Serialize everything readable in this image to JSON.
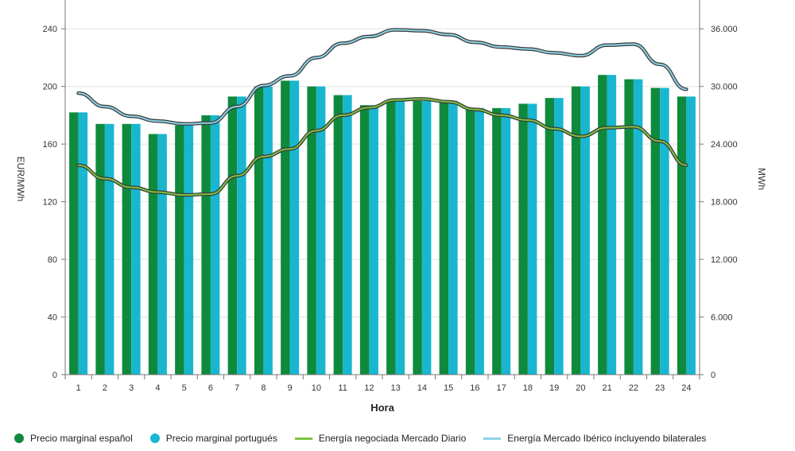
{
  "chart_data": {
    "type": "bar",
    "title": "",
    "xlabel": "Hora",
    "ylabel_left": "EUR/MWh",
    "ylabel_right": "MWh",
    "categories": [
      "1",
      "2",
      "3",
      "4",
      "5",
      "6",
      "7",
      "8",
      "9",
      "10",
      "11",
      "12",
      "13",
      "14",
      "15",
      "16",
      "17",
      "18",
      "19",
      "20",
      "21",
      "22",
      "23",
      "24"
    ],
    "ylim_left": [
      0,
      260
    ],
    "ylim_right": [
      0,
      39000
    ],
    "yticks_left": [
      0,
      40,
      80,
      120,
      160,
      200,
      240
    ],
    "yticks_left_labels": [
      "0",
      "40",
      "80",
      "120",
      "160",
      "200",
      "240"
    ],
    "yticks_right": [
      0,
      6000,
      12000,
      18000,
      24000,
      30000,
      36000
    ],
    "yticks_right_labels": [
      "0",
      "6.000",
      "12.000",
      "18.000",
      "24.000",
      "30.000",
      "36.000"
    ],
    "grid": true,
    "series": [
      {
        "name": "Precio marginal español",
        "type": "bar",
        "axis": "left",
        "color": "#0f8a3c",
        "values": [
          182,
          174,
          174,
          167,
          173,
          180,
          193,
          200,
          204,
          200,
          194,
          187,
          190,
          190,
          190,
          185,
          185,
          188,
          192,
          200,
          208,
          205,
          199,
          193
        ]
      },
      {
        "name": "Precio marginal portugués",
        "type": "bar",
        "axis": "left",
        "color": "#19b6d0",
        "values": [
          182,
          174,
          174,
          167,
          173,
          180,
          193,
          200,
          204,
          200,
          194,
          187,
          190,
          190,
          190,
          185,
          185,
          188,
          192,
          200,
          208,
          205,
          199,
          193
        ]
      },
      {
        "name": "Energía negociada Mercado Diario",
        "type": "line",
        "axis": "right",
        "color": "#7dc242",
        "values": [
          21800,
          20400,
          19500,
          19000,
          18700,
          18800,
          20700,
          22700,
          23500,
          25400,
          27000,
          27800,
          28600,
          28700,
          28400,
          27600,
          27000,
          26500,
          25600,
          24800,
          25700,
          25800,
          24300,
          21800
        ]
      },
      {
        "name": "Energía Mercado Ibérico incluyendo bilaterales",
        "type": "line",
        "axis": "right",
        "color": "#8fd3e8",
        "values": [
          29300,
          27900,
          26900,
          26400,
          26100,
          26200,
          27900,
          30100,
          31100,
          33000,
          34500,
          35200,
          35900,
          35800,
          35400,
          34600,
          34100,
          33900,
          33500,
          33200,
          34300,
          34400,
          32300,
          29700
        ]
      }
    ],
    "legend": "bottom"
  }
}
